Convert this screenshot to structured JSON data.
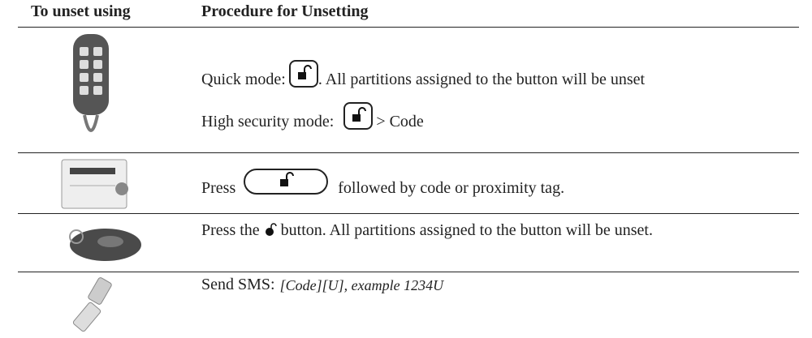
{
  "table": {
    "header": [
      "To unset using",
      "Procedure for Unsetting"
    ],
    "rows": [
      {
        "lines": [
          [
            "Quick mode:",
            ". All partitions assigned to the button will be unset"
          ],
          [
            "High security mode:",
            "> Code"
          ]
        ]
      },
      {
        "lines": [
          [
            "Press",
            "followed by code or proximity tag."
          ]
        ]
      },
      {
        "lines": [
          [
            "Press the",
            "button. All partitions assigned to the button will be unset."
          ]
        ]
      },
      {
        "lines": [
          [
            "Send SMS:",
            "[Code][U], example 1234U"
          ]
        ]
      }
    ]
  }
}
